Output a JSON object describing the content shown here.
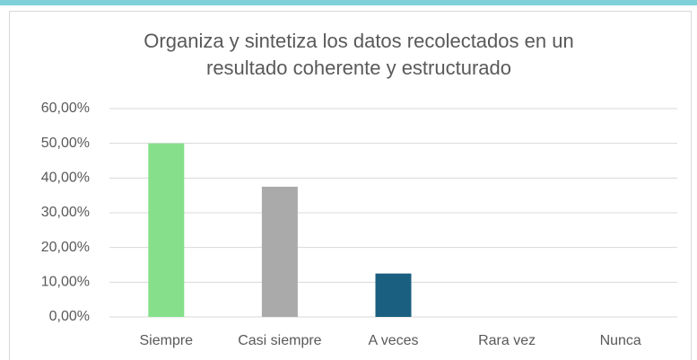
{
  "chart_data": {
    "type": "bar",
    "title": [
      "Organiza y sintetiza los datos recolectados en un",
      "resultado coherente y estructurado"
    ],
    "categories": [
      "Siempre",
      "Casi siempre",
      "A veces",
      "Rara vez",
      "Nunca"
    ],
    "values": [
      50,
      37.5,
      12.5,
      0,
      0
    ],
    "colors": [
      "#86e08b",
      "#aaaaaa",
      "#1a5f7f",
      "#5b9bd5",
      "#ed7d31"
    ],
    "ylim": [
      0,
      60
    ],
    "yticks": [
      {
        "value": 0,
        "label": "0,00%"
      },
      {
        "value": 10,
        "label": "10,00%"
      },
      {
        "value": 20,
        "label": "20,00%"
      },
      {
        "value": 30,
        "label": "30,00%"
      },
      {
        "value": 40,
        "label": "40,00%"
      },
      {
        "value": 50,
        "label": "50,00%"
      },
      {
        "value": 60,
        "label": "60,00%"
      }
    ],
    "grid": true
  }
}
